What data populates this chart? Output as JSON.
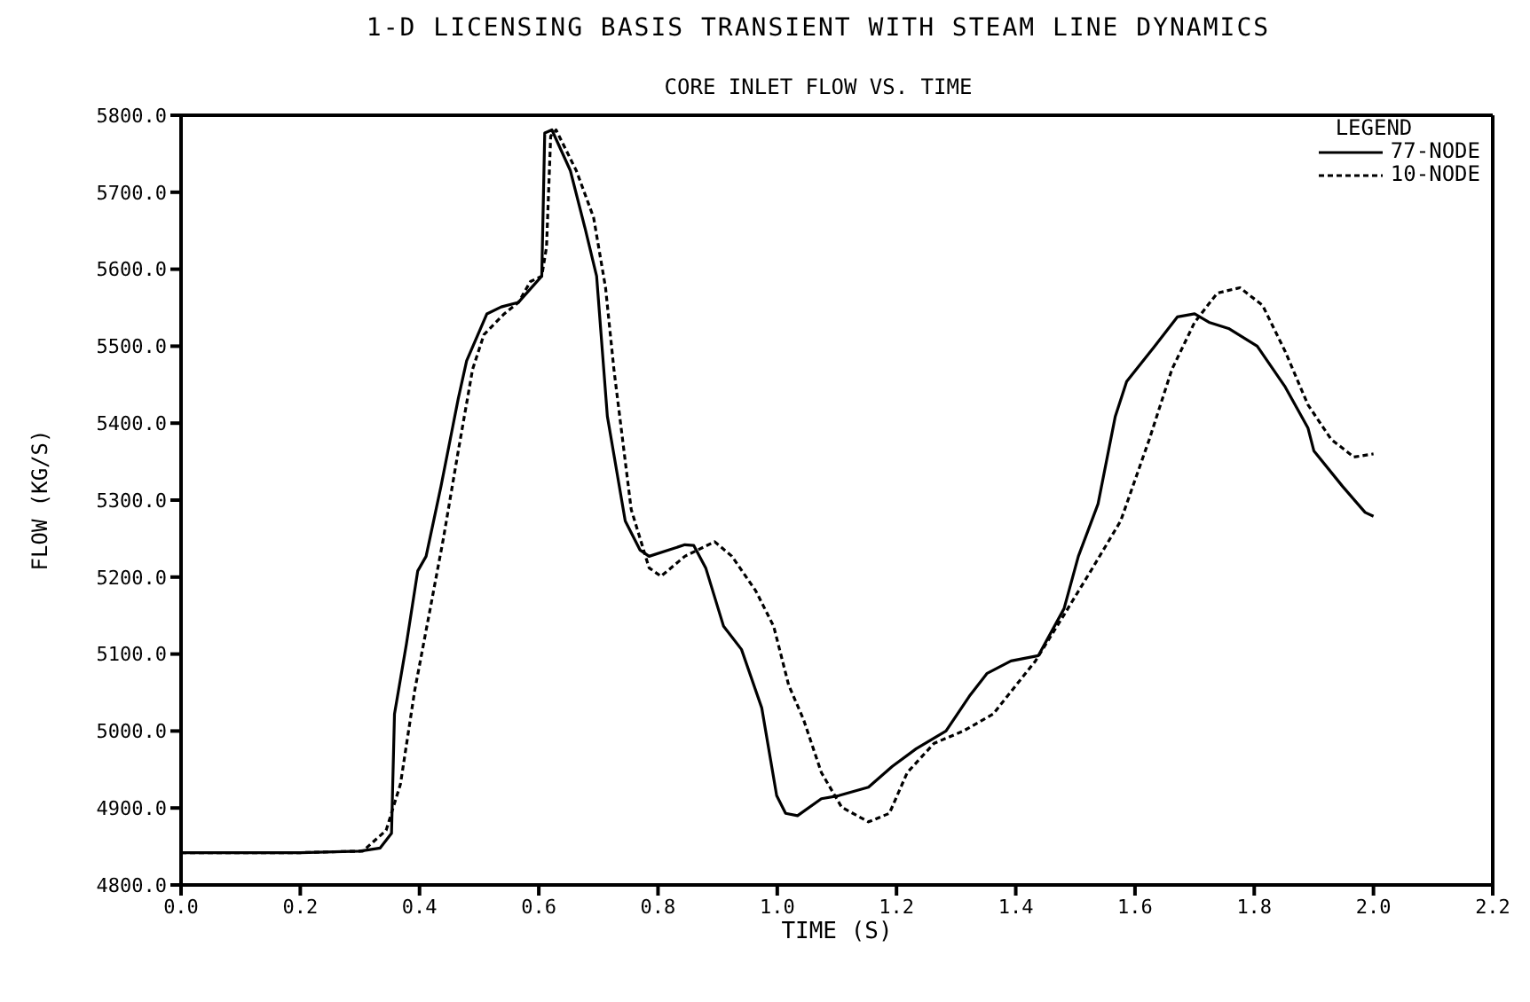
{
  "chart_data": {
    "type": "line",
    "title": "1-D LICENSING BASIS TRANSIENT WITH STEAM LINE DYNAMICS",
    "subtitle": "CORE INLET FLOW VS. TIME",
    "xlabel": "TIME (S)",
    "ylabel": "FLOW (KG/S)",
    "legend_title": "LEGEND",
    "legend": "top right",
    "grid": false,
    "marker": "none",
    "xlim": [
      0,
      2.2
    ],
    "ylim": [
      4800,
      5800
    ],
    "xticks": [
      {
        "value": 0,
        "label": "0.0"
      },
      {
        "value": 0.2,
        "label": "0.2"
      },
      {
        "value": 0.4,
        "label": "0.4"
      },
      {
        "value": 0.6,
        "label": "0.6"
      },
      {
        "value": 0.8,
        "label": "0.8"
      },
      {
        "value": 1,
        "label": "1.0"
      },
      {
        "value": 1.2,
        "label": "1.2"
      },
      {
        "value": 1.4,
        "label": "1.4"
      },
      {
        "value": 1.6,
        "label": "1.6"
      },
      {
        "value": 1.8,
        "label": "1.8"
      },
      {
        "value": 2,
        "label": "2.0"
      },
      {
        "value": 2.2,
        "label": "2.2"
      }
    ],
    "yticks": [
      {
        "value": 4800,
        "label": "4800.0"
      },
      {
        "value": 4900,
        "label": "4900.0"
      },
      {
        "value": 5000,
        "label": "5000.0"
      },
      {
        "value": 5100,
        "label": "5100.0"
      },
      {
        "value": 5200,
        "label": "5200.0"
      },
      {
        "value": 5300,
        "label": "5300.0"
      },
      {
        "value": 5400,
        "label": "5400.0"
      },
      {
        "value": 5500,
        "label": "5500.0"
      },
      {
        "value": 5600,
        "label": "5600.0"
      },
      {
        "value": 5700,
        "label": "5700.0"
      },
      {
        "value": 5800,
        "label": "5800.0"
      }
    ],
    "series": [
      {
        "name": "77-NODE",
        "color": "#000000",
        "line_style": "solid",
        "x": [
          0,
          0.2,
          0.3,
          0.334,
          0.353,
          0.358,
          0.378,
          0.397,
          0.411,
          0.436,
          0.465,
          0.479,
          0.513,
          0.537,
          0.566,
          0.605,
          0.61,
          0.622,
          0.653,
          0.678,
          0.697,
          0.715,
          0.745,
          0.77,
          0.785,
          0.845,
          0.86,
          0.88,
          0.91,
          0.94,
          0.974,
          0.999,
          1.014,
          1.034,
          1.074,
          1.103,
          1.153,
          1.193,
          1.233,
          1.283,
          1.322,
          1.352,
          1.392,
          1.438,
          1.481,
          1.505,
          1.538,
          1.567,
          1.586,
          1.633,
          1.671,
          1.7,
          1.724,
          1.757,
          1.805,
          1.852,
          1.89,
          1.9,
          1.948,
          1.986,
          2.0
        ],
        "values": [
          4842,
          4842,
          4844,
          4848,
          4867,
          5022,
          5113,
          5208,
          5227,
          5318,
          5432,
          5481,
          5542,
          5551,
          5557,
          5591,
          5777,
          5781,
          5728,
          5652,
          5591,
          5409,
          5273,
          5235,
          5227,
          5242,
          5241,
          5212,
          5136,
          5106,
          5030,
          4916,
          4893,
          4890,
          4912,
          4916,
          4927,
          4954,
          4977,
          5000,
          5045,
          5075,
          5091,
          5098,
          5159,
          5227,
          5295,
          5409,
          5454,
          5500,
          5538,
          5542,
          5531,
          5523,
          5500,
          5447,
          5394,
          5364,
          5318,
          5284,
          5279
        ]
      },
      {
        "name": "10-NODE",
        "color": "#000000",
        "line_style": "dashed",
        "x": [
          0,
          0.2,
          0.305,
          0.344,
          0.368,
          0.392,
          0.416,
          0.44,
          0.465,
          0.489,
          0.508,
          0.542,
          0.566,
          0.586,
          0.605,
          0.613,
          0.62,
          0.629,
          0.663,
          0.692,
          0.712,
          0.726,
          0.755,
          0.785,
          0.805,
          0.845,
          0.895,
          0.924,
          0.964,
          0.994,
          1.019,
          1.044,
          1.074,
          1.108,
          1.153,
          1.188,
          1.218,
          1.263,
          1.312,
          1.362,
          1.433,
          1.481,
          1.529,
          1.576,
          1.624,
          1.662,
          1.7,
          1.738,
          1.776,
          1.814,
          1.852,
          1.89,
          1.929,
          1.967,
          2.0
        ],
        "values": [
          4842,
          4842,
          4844,
          4871,
          4931,
          5053,
          5151,
          5250,
          5364,
          5470,
          5515,
          5542,
          5557,
          5584,
          5591,
          5629,
          5773,
          5781,
          5728,
          5667,
          5576,
          5470,
          5288,
          5212,
          5201,
          5227,
          5246,
          5227,
          5182,
          5136,
          5060,
          5015,
          4946,
          4901,
          4882,
          4893,
          4946,
          4984,
          5000,
          5022,
          5091,
          5151,
          5212,
          5273,
          5379,
          5470,
          5531,
          5569,
          5576,
          5553,
          5493,
          5424,
          5379,
          5356,
          5360
        ]
      }
    ]
  }
}
